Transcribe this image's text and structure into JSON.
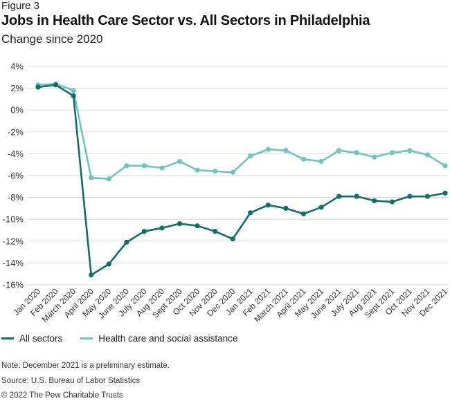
{
  "figure_label": "Figure 3",
  "chart_data": {
    "type": "line",
    "title": "Jobs in Health Care Sector vs. All Sectors in Philadelphia",
    "subtitle": "Change since 2020",
    "xlabel": "",
    "ylabel": "",
    "ylim": [
      -16,
      4
    ],
    "yticks": [
      4,
      2,
      0,
      -2,
      -4,
      -6,
      -8,
      -10,
      -12,
      -14,
      -16
    ],
    "ytick_labels": [
      "4%",
      "2%",
      "0%",
      "-2%",
      "-4%",
      "-6%",
      "-8%",
      "-10%",
      "-12%",
      "-14%",
      "-16%"
    ],
    "grid": true,
    "legend_position": "bottom-left",
    "categories": [
      "Jan 2020",
      "Feb 2020",
      "March 2020",
      "April 2020",
      "May 2020",
      "June 2020",
      "July 2020",
      "Aug 2020",
      "Sept 2020",
      "Oct 2020",
      "Nov 2020",
      "Dec 2020",
      "Jan 2021",
      "Feb 2021",
      "March 2021",
      "April 2021",
      "May 2021",
      "June 2021",
      "July 2021",
      "Aug 2021",
      "Sept 2021",
      "Oct 2021",
      "Nov 2021",
      "Dec 2021"
    ],
    "series": [
      {
        "name": "All sectors",
        "color": "#0e6e68",
        "values": [
          2.1,
          2.3,
          1.3,
          -15.1,
          -14.1,
          -12.1,
          -11.1,
          -10.8,
          -10.4,
          -10.6,
          -11.1,
          -11.8,
          -9.4,
          -8.7,
          -9.0,
          -9.5,
          -8.9,
          -7.9,
          -7.9,
          -8.3,
          -8.4,
          -7.9,
          -7.9,
          -7.6
        ]
      },
      {
        "name": "Health care and social assistance",
        "color": "#6cc5c0",
        "values": [
          2.3,
          2.4,
          1.8,
          -6.2,
          -6.3,
          -5.1,
          -5.1,
          -5.3,
          -4.7,
          -5.5,
          -5.6,
          -5.7,
          -4.2,
          -3.6,
          -3.7,
          -4.5,
          -4.7,
          -3.7,
          -3.9,
          -4.3,
          -3.9,
          -3.7,
          -4.1,
          -5.1
        ]
      }
    ]
  },
  "note": "Note: December 2021 is a preliminary estimate.",
  "source": "Source: U.S. Bureau of Labor Statistics",
  "copyright": "© 2022 The Pew Charitable Trusts"
}
